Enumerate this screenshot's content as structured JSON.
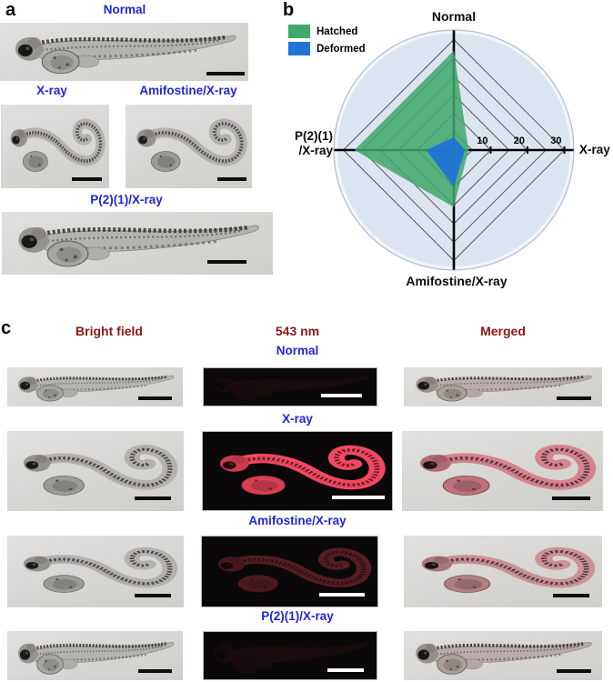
{
  "colors": {
    "label_blue": "#2026d8",
    "header_red": "#8e1515",
    "hatched_green": "#3fa86a",
    "deformed_blue": "#2173d4",
    "radar_circle_fill": "#dde4f1"
  },
  "panel_a": {
    "label": "a",
    "group_labels": [
      "Normal",
      "X-ray",
      "Amifostine/X-ray",
      "P(2)(1)/X-ray"
    ]
  },
  "panel_b": {
    "label": "b",
    "left_axis_display": "P(2)(1)\n/X-ray"
  },
  "panel_c": {
    "label": "c",
    "columns": [
      "Bright field",
      "543 nm",
      "Merged"
    ],
    "rows": [
      "Normal",
      "X-ray",
      "Amifostine/X-ray",
      "P(2)(1)/X-ray"
    ]
  },
  "chart_data": {
    "type": "radar",
    "axes": [
      "Normal",
      "X-ray",
      "Amifostine/X-ray",
      "P(2)(1)/X-ray"
    ],
    "series": [
      {
        "name": "Hatched",
        "color": "#3fa86a",
        "values": [
          27,
          4,
          15.5,
          27
        ]
      },
      {
        "name": "Deformed",
        "color": "#2173d4",
        "values": [
          3.5,
          3,
          10,
          7.5
        ]
      }
    ],
    "tick_values": [
      10,
      20,
      30
    ],
    "grid_interval": 5,
    "grid_max": 30,
    "axis_max": 32.5,
    "grid_shape": "diamond",
    "legend_position": "top-left",
    "background": "circle"
  }
}
